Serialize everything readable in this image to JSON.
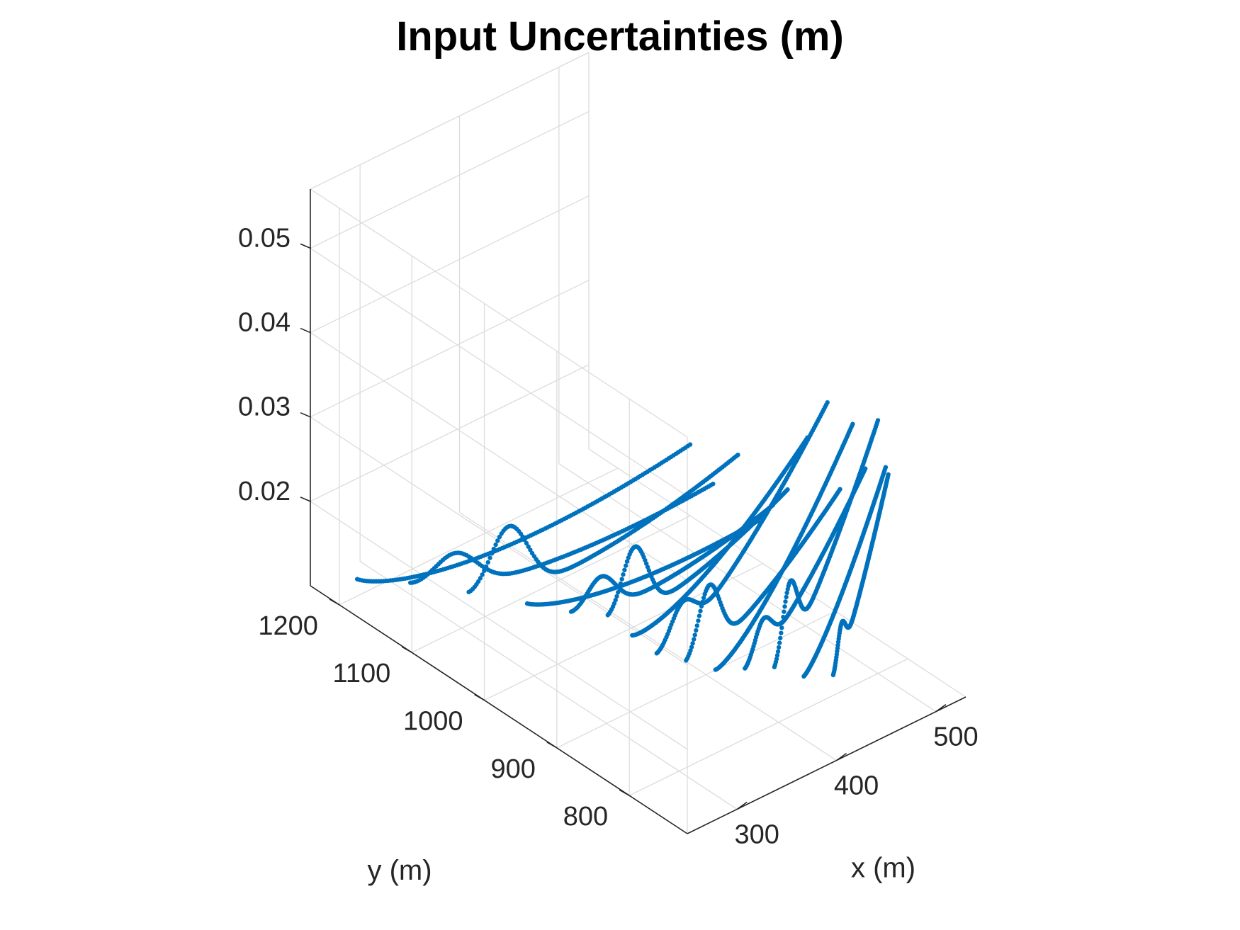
{
  "chart_data": {
    "type": "scatter",
    "title": "Input Uncertainties (m)",
    "xlabel": "x (m)",
    "ylabel": "y (m)",
    "zlabel": "",
    "xlim": [
      250,
      530
    ],
    "ylim": [
      720,
      1240
    ],
    "zlim": [
      0.01,
      0.057
    ],
    "x_ticks": [
      300,
      400,
      500
    ],
    "y_ticks": [
      800,
      900,
      1000,
      1100,
      1200
    ],
    "z_ticks": [
      0.02,
      0.03,
      0.04,
      0.05
    ],
    "x_tick_labels": [
      "300",
      "400",
      "500"
    ],
    "y_tick_labels": [
      "800",
      "900",
      "1000",
      "1100",
      "1200"
    ],
    "z_tick_labels": [
      "0.02",
      "0.03",
      "0.04",
      "0.05"
    ],
    "grid": true,
    "marker_color": "#0072BD",
    "series": [
      {
        "x_start": 268,
        "x_end": 282,
        "y_start": 1200,
        "y_end": 760,
        "z_min": 0.012,
        "z_end": 0.052
      },
      {
        "x_start": 285,
        "x_end": 305,
        "y_start": 1150,
        "y_end": 760,
        "z_min": 0.013,
        "z_end": 0.046
      },
      {
        "x_start": 300,
        "x_end": 330,
        "y_start": 1090,
        "y_end": 760,
        "z_min": 0.014,
        "z_end": 0.048
      },
      {
        "x_start": 315,
        "x_end": 350,
        "y_start": 1030,
        "y_end": 760,
        "z_min": 0.016,
        "z_end": 0.039
      },
      {
        "x_start": 330,
        "x_end": 365,
        "y_start": 990,
        "y_end": 760,
        "z_min": 0.016,
        "z_end": 0.04
      },
      {
        "x_start": 345,
        "x_end": 380,
        "y_start": 960,
        "y_end": 760,
        "z_min": 0.016,
        "z_end": 0.041
      },
      {
        "x_start": 355,
        "x_end": 400,
        "y_start": 940,
        "y_end": 760,
        "z_min": 0.015,
        "z_end": 0.046
      },
      {
        "x_start": 365,
        "x_end": 420,
        "y_start": 920,
        "y_end": 760,
        "z_min": 0.013,
        "z_end": 0.049
      },
      {
        "x_start": 380,
        "x_end": 440,
        "y_start": 900,
        "y_end": 770,
        "z_min": 0.012,
        "z_end": 0.037
      },
      {
        "x_start": 395,
        "x_end": 460,
        "y_start": 880,
        "y_end": 780,
        "z_min": 0.012,
        "z_end": 0.043
      },
      {
        "x_start": 410,
        "x_end": 480,
        "y_start": 860,
        "y_end": 790,
        "z_min": 0.012,
        "z_end": 0.036
      },
      {
        "x_start": 425,
        "x_end": 500,
        "y_start": 840,
        "y_end": 800,
        "z_min": 0.012,
        "z_end": 0.04
      },
      {
        "x_start": 440,
        "x_end": 515,
        "y_start": 820,
        "y_end": 810,
        "z_min": 0.012,
        "z_end": 0.033
      },
      {
        "x_start": 455,
        "x_end": 525,
        "y_start": 800,
        "y_end": 820,
        "z_min": 0.012,
        "z_end": 0.031
      }
    ]
  }
}
